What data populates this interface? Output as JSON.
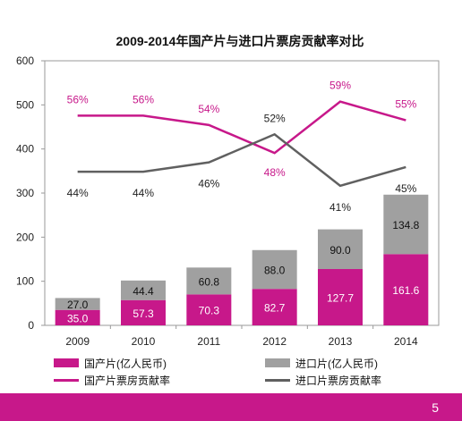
{
  "chart_data": {
    "type": "bar",
    "title": "2009-2014年国产片与进口片票房贡献率对比",
    "categories": [
      "2009",
      "2010",
      "2011",
      "2012",
      "2013",
      "2014"
    ],
    "ylim": [
      0,
      600
    ],
    "yticks": [
      "0",
      "100",
      "200",
      "300",
      "400",
      "500",
      "600"
    ],
    "grid": false,
    "legend_position": "bottom",
    "stacked": true,
    "series": [
      {
        "name": "国产片(亿人民币)",
        "kind": "bar",
        "color": "#c7188a",
        "values": [
          35.0,
          57.3,
          70.3,
          82.7,
          127.7,
          161.6
        ],
        "labels": [
          "35.0",
          "57.3",
          "70.3",
          "82.7",
          "127.7",
          "161.6"
        ]
      },
      {
        "name": "进口片(亿人民币)",
        "kind": "bar",
        "color": "#a0a0a0",
        "values": [
          27.0,
          44.4,
          60.8,
          88.0,
          90.0,
          134.8
        ],
        "labels": [
          "27.0",
          "44.4",
          "60.8",
          "88.0",
          "90.0",
          "134.8"
        ]
      },
      {
        "name": "国产片票房贡献率",
        "kind": "line",
        "color": "#c7188a",
        "values": [
          56,
          56,
          54,
          48,
          59,
          55
        ],
        "labels": [
          "56%",
          "56%",
          "54%",
          "48%",
          "59%",
          "55%"
        ]
      },
      {
        "name": "进口片票房贡献率",
        "kind": "line",
        "color": "#606060",
        "values": [
          44,
          44,
          46,
          52,
          41,
          45
        ],
        "labels": [
          "44%",
          "44%",
          "46%",
          "52%",
          "41%",
          "45%"
        ]
      }
    ]
  },
  "legend": {
    "domestic_box": "国产片(亿人民币)",
    "import_box": "进口片(亿人民币)",
    "domestic_line": "国产片票房贡献率",
    "import_line": "进口片票房贡献率"
  },
  "footer": {
    "page_number": "5"
  },
  "colors": {
    "accent": "#c7188a",
    "gray_bar": "#a0a0a0",
    "gray_line": "#606060"
  }
}
